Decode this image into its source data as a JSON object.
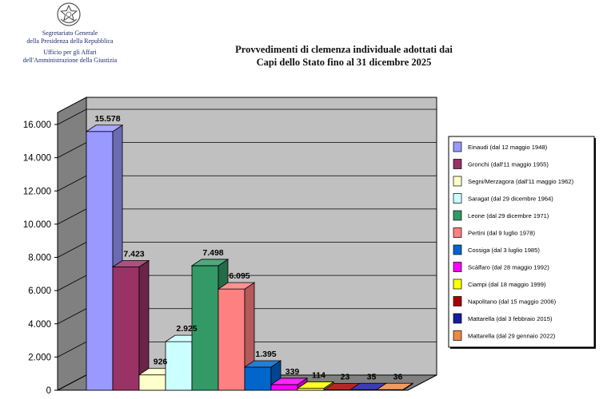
{
  "header": {
    "org_line1": "Segretariato Generale",
    "org_line2": "della Presidenza della Repubblica",
    "org_line3": "Ufficio per gli Affari",
    "org_line4": "dell'Amministrazione della Giustizia",
    "title_line1": "Provvedimenti di clemenza individuale adottati dai",
    "title_line2": "Capi dello Stato fino al 31 dicembre 2025"
  },
  "chart_data": {
    "type": "bar",
    "title": "Provvedimenti di clemenza individuale adottati dai Capi dello Stato fino al 31 dicembre 2025",
    "three_d": true,
    "grid": true,
    "legend_position": "right",
    "ylim": [
      0,
      16000
    ],
    "y_ticks": [
      "0",
      "2.000",
      "4.000",
      "6.000",
      "8.000",
      "10.000",
      "12.000",
      "14.000",
      "16.000"
    ],
    "series": [
      {
        "name": "Einaudi (dal 12 maggio 1948)",
        "value": 15578,
        "label": "15.578",
        "color": "#9999ff"
      },
      {
        "name": "Gronchi (dall'11 maggio 1955)",
        "value": 7423,
        "label": "7.423",
        "color": "#993366"
      },
      {
        "name": "Segni/Merzagora (dall'11 maggio 1962)",
        "value": 926,
        "label": "926",
        "color": "#ffffcc"
      },
      {
        "name": "Saragat (dal 29 dicembre 1964)",
        "value": 2925,
        "label": "2.925",
        "color": "#ccffff"
      },
      {
        "name": "Leone (dal 29 dicembre 1971)",
        "value": 7498,
        "label": "7.498",
        "color": "#339966"
      },
      {
        "name": "Pertini (dal 9 luglio 1978)",
        "value": 6095,
        "label": "6.095",
        "color": "#ff8080"
      },
      {
        "name": "Cossiga (dal 3 luglio 1985)",
        "value": 1395,
        "label": "1.395",
        "color": "#0066cc"
      },
      {
        "name": "Scàlfaro (dal 28 maggio 1992)",
        "value": 339,
        "label": "339",
        "color": "#ff00ff"
      },
      {
        "name": "Ciampi (dal 18 maggio 1999)",
        "value": 114,
        "label": "114",
        "color": "#ffff00"
      },
      {
        "name": "Napolitano (dal 15 maggio 2006)",
        "value": 23,
        "label": "23",
        "color": "#aa0000"
      },
      {
        "name": "Mattarella (dal 3 febbraio  2015)",
        "value": 35,
        "label": "35",
        "color": "#1a1aa6"
      },
      {
        "name": "Mattarella (dal 29 gennaio 2022)",
        "value": 36,
        "label": "36",
        "color": "#ee8844"
      }
    ]
  }
}
